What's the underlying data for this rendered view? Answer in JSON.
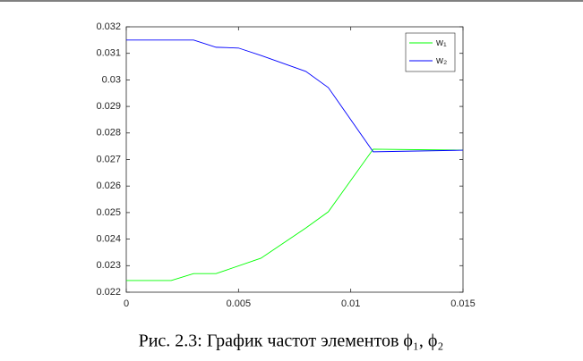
{
  "chart_data": {
    "type": "line",
    "caption": "Рис. 2.3: График частот элементов ϕ₁, ϕ₂",
    "series": [
      {
        "name": "w₁",
        "color": "#00ff00",
        "x": [
          0,
          0.002,
          0.003,
          0.004,
          0.006,
          0.008,
          0.009,
          0.011,
          0.015
        ],
        "values": [
          0.02244,
          0.02244,
          0.0227,
          0.0227,
          0.02328,
          0.02442,
          0.02503,
          0.02739,
          0.02735
        ]
      },
      {
        "name": "w₂",
        "color": "#0000ff",
        "x": [
          0,
          0.003,
          0.004,
          0.005,
          0.006,
          0.008,
          0.009,
          0.011,
          0.015
        ],
        "values": [
          0.0315,
          0.0315,
          0.03123,
          0.0312,
          0.03092,
          0.03032,
          0.02971,
          0.02729,
          0.02735
        ]
      }
    ],
    "xlim": [
      0,
      0.015
    ],
    "xticks": [
      0,
      0.005,
      0.01,
      0.015
    ],
    "ylim": [
      0.022,
      0.032
    ],
    "yticks": [
      0.022,
      0.023,
      0.024,
      0.025,
      0.026,
      0.027,
      0.028,
      0.029,
      0.03,
      0.031,
      0.032
    ],
    "legend": "top-right",
    "grid": false
  }
}
